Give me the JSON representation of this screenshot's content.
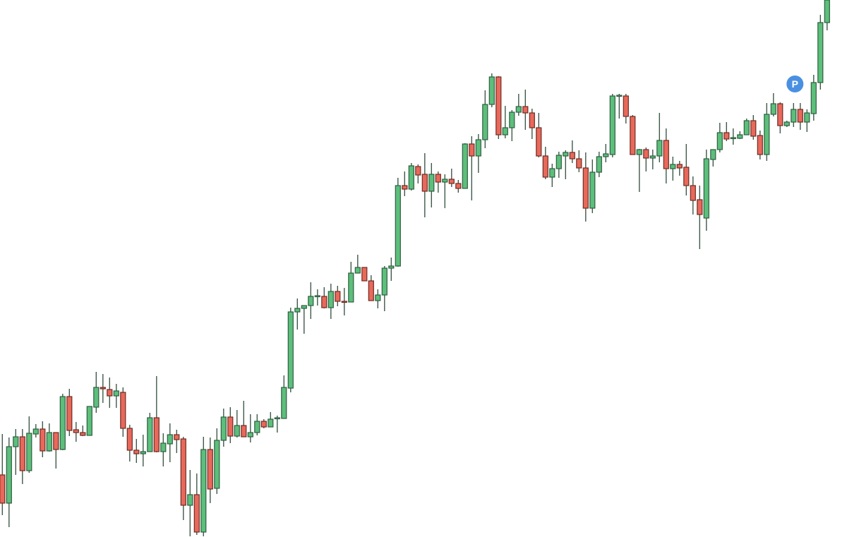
{
  "chart_data": {
    "type": "candlestick",
    "title": "",
    "xlabel": "",
    "ylabel": "",
    "ylim": [
      39,
      800
    ],
    "grid": false,
    "legend": "none",
    "colors": {
      "up": "#5cbf7b",
      "up_border": "#2f5e40",
      "down": "#e8695b",
      "down_border": "#6e2b22",
      "wick": "#3f5a4a",
      "marker": "#4a90e2"
    },
    "ohlc_order": [
      "open",
      "high",
      "low",
      "close"
    ],
    "ohlc": [
      [
        127,
        185,
        70,
        87
      ],
      [
        87,
        180,
        53,
        167
      ],
      [
        167,
        192,
        127,
        181
      ],
      [
        181,
        192,
        114,
        133
      ],
      [
        133,
        210,
        130,
        186
      ],
      [
        185,
        199,
        180,
        192
      ],
      [
        192,
        203,
        152,
        161
      ],
      [
        161,
        200,
        160,
        187
      ],
      [
        187,
        187,
        136,
        163
      ],
      [
        163,
        242,
        162,
        238
      ],
      [
        238,
        249,
        182,
        190
      ],
      [
        191,
        202,
        174,
        187
      ],
      [
        187,
        197,
        182,
        183
      ],
      [
        183,
        224,
        183,
        224
      ],
      [
        223,
        273,
        215,
        251
      ],
      [
        251,
        270,
        229,
        249
      ],
      [
        248,
        265,
        222,
        239
      ],
      [
        239,
        256,
        222,
        246
      ],
      [
        244,
        251,
        181,
        193
      ],
      [
        193,
        198,
        146,
        162
      ],
      [
        162,
        178,
        144,
        157
      ],
      [
        157,
        184,
        139,
        160
      ],
      [
        160,
        215,
        160,
        208
      ],
      [
        208,
        267,
        159,
        160
      ],
      [
        160,
        186,
        139,
        172
      ],
      [
        171,
        200,
        145,
        184
      ],
      [
        184,
        191,
        158,
        177
      ],
      [
        178,
        181,
        63,
        84
      ],
      [
        84,
        134,
        40,
        99
      ],
      [
        99,
        129,
        42,
        46
      ],
      [
        46,
        181,
        40,
        163
      ],
      [
        163,
        180,
        87,
        107
      ],
      [
        108,
        193,
        100,
        176
      ],
      [
        176,
        221,
        167,
        209
      ],
      [
        209,
        223,
        172,
        182
      ],
      [
        182,
        219,
        180,
        197
      ],
      [
        197,
        232,
        181,
        181
      ],
      [
        181,
        213,
        173,
        187
      ],
      [
        187,
        213,
        183,
        203
      ],
      [
        203,
        206,
        193,
        195
      ],
      [
        195,
        216,
        195,
        206
      ],
      [
        207,
        211,
        187,
        208
      ],
      [
        207,
        268,
        207,
        251
      ],
      [
        250,
        364,
        244,
        358
      ],
      [
        358,
        377,
        333,
        363
      ],
      [
        363,
        367,
        327,
        367
      ],
      [
        367,
        400,
        348,
        380
      ],
      [
        380,
        390,
        367,
        381
      ],
      [
        380,
        393,
        363,
        364
      ],
      [
        364,
        398,
        348,
        387
      ],
      [
        387,
        395,
        366,
        373
      ],
      [
        373,
        392,
        353,
        372
      ],
      [
        372,
        429,
        372,
        413
      ],
      [
        413,
        439,
        413,
        421
      ],
      [
        421,
        421,
        402,
        402
      ],
      [
        402,
        410,
        374,
        374
      ],
      [
        374,
        390,
        363,
        382
      ],
      [
        382,
        423,
        359,
        420
      ],
      [
        420,
        435,
        402,
        423
      ],
      [
        423,
        548,
        422,
        537
      ],
      [
        537,
        557,
        522,
        532
      ],
      [
        532,
        569,
        530,
        565
      ],
      [
        564,
        567,
        540,
        552
      ],
      [
        553,
        583,
        492,
        529
      ],
      [
        529,
        569,
        506,
        553
      ],
      [
        553,
        557,
        527,
        542
      ],
      [
        542,
        553,
        505,
        546
      ],
      [
        546,
        561,
        535,
        540
      ],
      [
        540,
        545,
        527,
        533
      ],
      [
        533,
        597,
        533,
        596
      ],
      [
        596,
        607,
        516,
        579
      ],
      [
        579,
        610,
        555,
        602
      ],
      [
        602,
        672,
        590,
        652
      ],
      [
        652,
        696,
        648,
        691
      ],
      [
        691,
        692,
        603,
        609
      ],
      [
        609,
        650,
        604,
        619
      ],
      [
        619,
        644,
        600,
        641
      ],
      [
        641,
        667,
        636,
        649
      ],
      [
        649,
        673,
        616,
        640
      ],
      [
        640,
        646,
        603,
        619
      ],
      [
        619,
        640,
        577,
        579
      ],
      [
        579,
        592,
        546,
        549
      ],
      [
        549,
        568,
        535,
        561
      ],
      [
        561,
        585,
        548,
        580
      ],
      [
        579,
        587,
        546,
        584
      ],
      [
        584,
        601,
        569,
        575
      ],
      [
        575,
        587,
        556,
        562
      ],
      [
        562,
        584,
        486,
        505
      ],
      [
        505,
        574,
        498,
        556
      ],
      [
        556,
        585,
        549,
        578
      ],
      [
        578,
        596,
        570,
        582
      ],
      [
        581,
        667,
        577,
        664
      ],
      [
        664,
        667,
        632,
        665
      ],
      [
        664,
        667,
        625,
        635
      ],
      [
        635,
        637,
        581,
        581
      ],
      [
        581,
        589,
        528,
        588
      ],
      [
        588,
        591,
        557,
        576
      ],
      [
        576,
        588,
        560,
        579
      ],
      [
        579,
        640,
        570,
        601
      ],
      [
        601,
        618,
        540,
        561
      ],
      [
        561,
        578,
        544,
        567
      ],
      [
        567,
        572,
        551,
        562
      ],
      [
        563,
        596,
        523,
        537
      ],
      [
        537,
        550,
        496,
        516
      ],
      [
        517,
        537,
        447,
        496
      ],
      [
        491,
        588,
        473,
        575
      ],
      [
        574,
        588,
        564,
        588
      ],
      [
        588,
        626,
        584,
        612
      ],
      [
        612,
        627,
        600,
        603
      ],
      [
        604,
        618,
        595,
        605
      ],
      [
        604,
        614,
        603,
        609
      ],
      [
        609,
        632,
        609,
        629
      ],
      [
        629,
        637,
        602,
        607
      ],
      [
        608,
        615,
        574,
        581
      ],
      [
        581,
        654,
        572,
        638
      ],
      [
        638,
        668,
        635,
        653
      ],
      [
        653,
        655,
        611,
        622
      ],
      [
        622,
        629,
        620,
        627
      ],
      [
        627,
        654,
        620,
        645
      ],
      [
        645,
        654,
        616,
        627
      ],
      [
        627,
        645,
        613,
        640
      ],
      [
        639,
        694,
        629,
        683
      ],
      [
        683,
        779,
        673,
        768
      ],
      [
        768,
        805,
        757,
        800
      ]
    ],
    "annotations": [
      {
        "label": "P",
        "candle_index": 118,
        "price": 681
      }
    ]
  }
}
